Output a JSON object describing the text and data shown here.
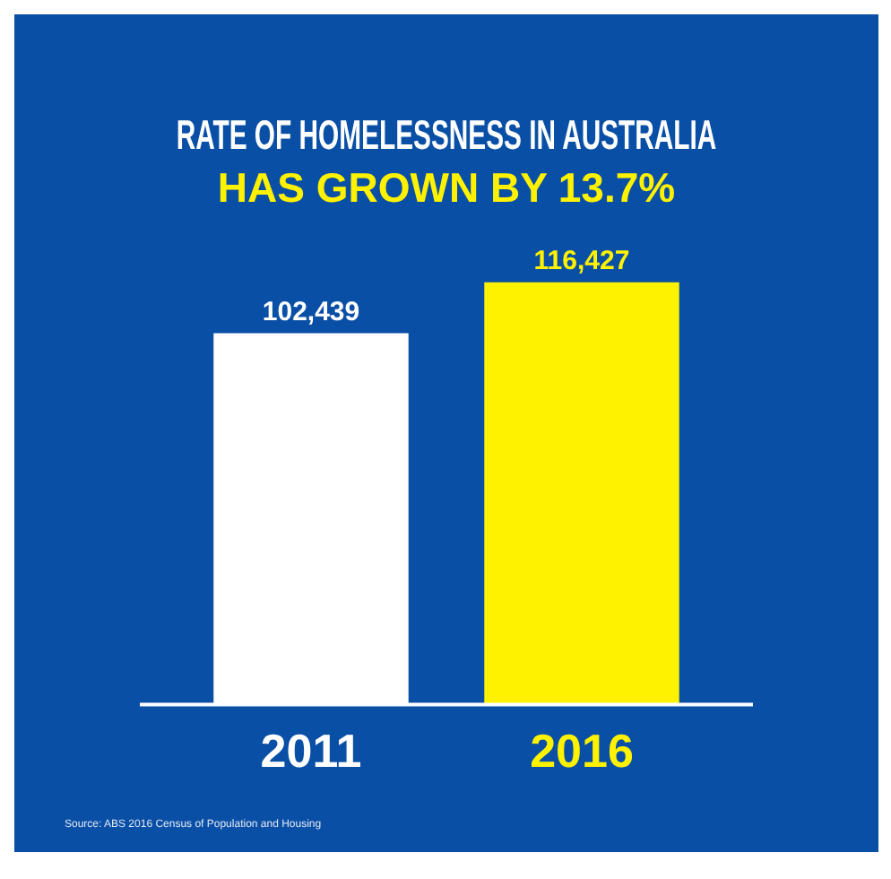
{
  "chart_data": {
    "type": "bar",
    "title": "RATE OF HOMELESSNESS IN AUSTRALIA",
    "subtitle": "HAS GROWN BY 13.7%",
    "categories": [
      "2011",
      "2016"
    ],
    "values": [
      102439,
      116427
    ],
    "colors": [
      "#ffffff",
      "#fff200"
    ],
    "value_labels": [
      "102,439",
      "116,427"
    ],
    "grid": false,
    "legend": false,
    "annotations": [
      "Source: ABS 2016 Census of Population and Housing"
    ]
  }
}
